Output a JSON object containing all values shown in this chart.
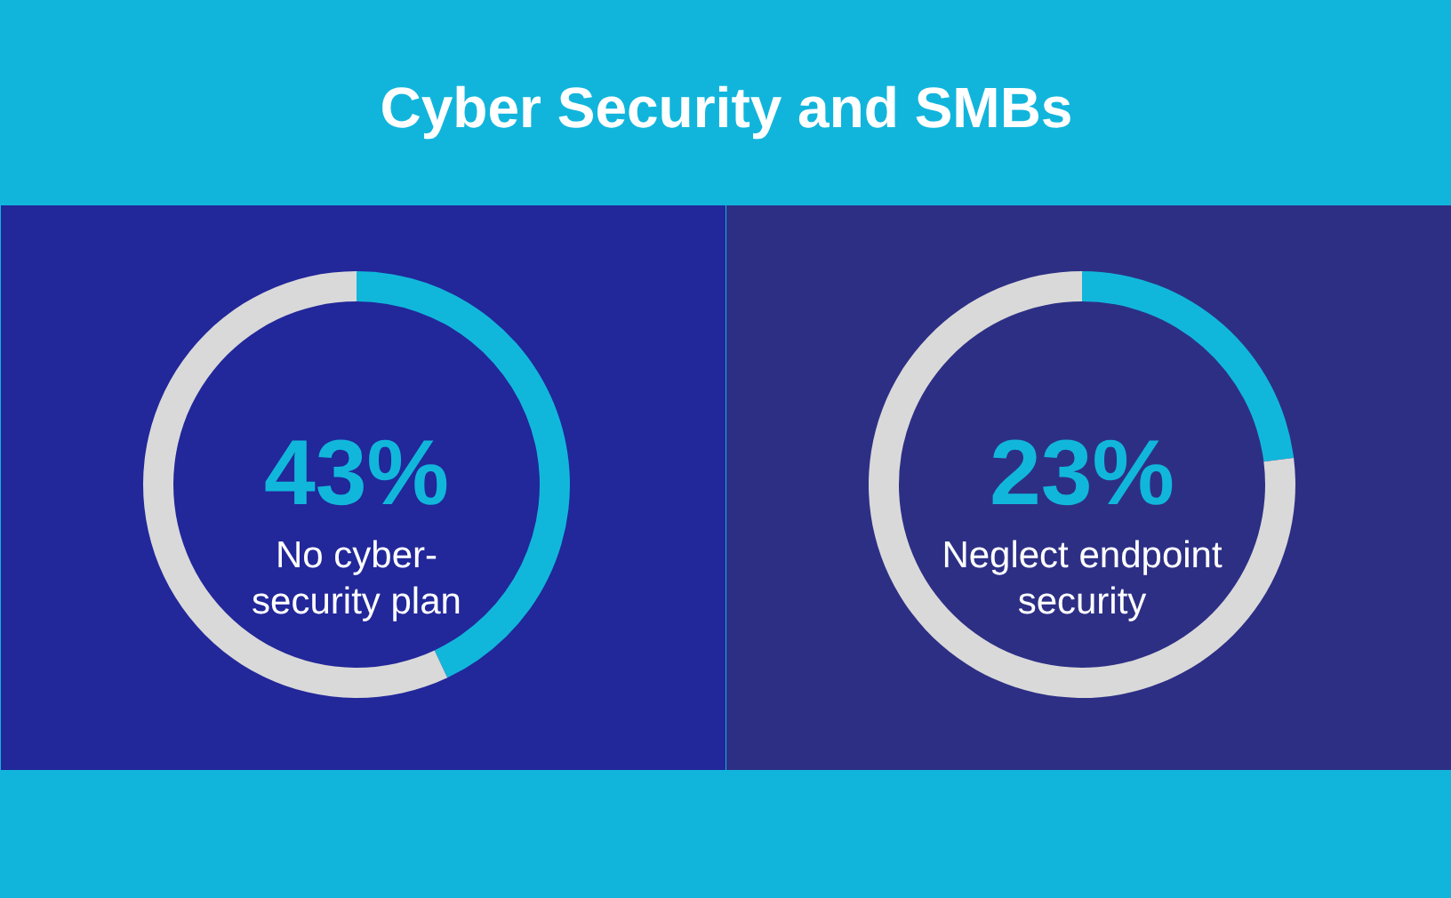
{
  "chart_data": [
    {
      "type": "donut",
      "title": "Cyber Security and SMBs",
      "categories": [
        "No cyber-security plan",
        null
      ],
      "values": [
        43,
        57
      ],
      "colors": [
        "#11b7db",
        "#d9d9d9"
      ],
      "value_labels": [
        "43%",
        null
      ]
    },
    {
      "type": "donut",
      "categories": [
        "Neglect endpoint security",
        null
      ],
      "values": [
        23,
        77
      ],
      "colors": [
        "#11b7db",
        "#d9d9d9"
      ],
      "value_labels": [
        "23%",
        null
      ]
    }
  ]
}
